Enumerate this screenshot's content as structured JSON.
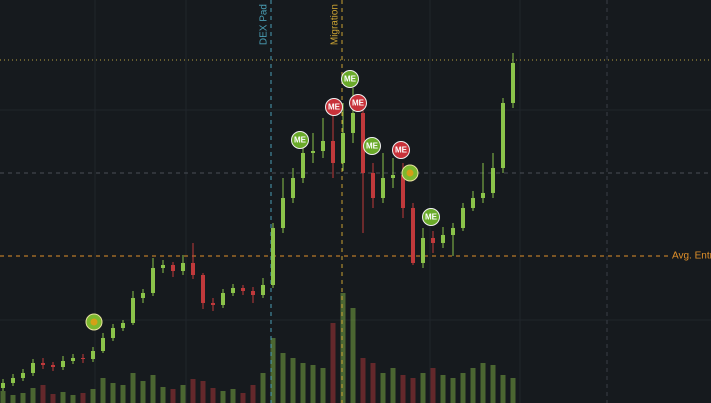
{
  "chart_data": {
    "type": "candlestick",
    "xlim": [
      -0.3,
      70.8
    ],
    "ylim": [
      0,
      403
    ],
    "volume_lim": [
      0,
      403
    ],
    "up_color": "#8bc34a",
    "down_color": "#c0393b",
    "open": [
      15,
      20,
      25,
      30,
      40,
      38,
      36,
      42,
      45,
      44,
      52,
      65,
      75,
      80,
      105,
      110,
      135,
      138,
      132,
      140,
      128,
      100,
      98,
      110,
      115,
      112,
      108,
      118,
      175,
      205,
      225,
      250,
      252,
      262,
      240,
      270,
      290,
      230,
      205,
      225,
      228,
      195,
      140,
      165,
      160,
      168,
      175,
      195,
      205,
      210,
      235,
      300
    ],
    "high": [
      24,
      29,
      34,
      44,
      45,
      41,
      47,
      49,
      49,
      56,
      70,
      79,
      83,
      112,
      114,
      145,
      143,
      141,
      148,
      160,
      130,
      105,
      114,
      119,
      118,
      116,
      125,
      180,
      225,
      235,
      262,
      270,
      285,
      290,
      300,
      315,
      295,
      240,
      250,
      245,
      240,
      200,
      175,
      172,
      176,
      180,
      200,
      212,
      240,
      250,
      305,
      350
    ],
    "low": [
      12,
      17,
      22,
      27,
      34,
      32,
      33,
      39,
      40,
      41,
      50,
      62,
      72,
      78,
      100,
      107,
      130,
      126,
      128,
      124,
      94,
      92,
      95,
      107,
      108,
      100,
      105,
      115,
      170,
      200,
      220,
      240,
      245,
      225,
      232,
      260,
      170,
      195,
      200,
      215,
      185,
      138,
      135,
      150,
      155,
      147,
      172,
      192,
      200,
      205,
      230,
      295
    ],
    "close": [
      20,
      25,
      30,
      40,
      38,
      36,
      42,
      45,
      44,
      52,
      65,
      75,
      80,
      105,
      110,
      135,
      138,
      132,
      140,
      128,
      100,
      98,
      110,
      115,
      112,
      108,
      118,
      175,
      205,
      225,
      250,
      252,
      262,
      240,
      270,
      290,
      230,
      205,
      225,
      228,
      195,
      140,
      165,
      160,
      168,
      175,
      195,
      205,
      210,
      235,
      300,
      340
    ],
    "volume": [
      12,
      8,
      10,
      15,
      18,
      9,
      11,
      8,
      10,
      14,
      25,
      20,
      18,
      30,
      22,
      28,
      16,
      14,
      18,
      24,
      22,
      15,
      12,
      14,
      10,
      18,
      30,
      65,
      50,
      45,
      40,
      38,
      35,
      80,
      110,
      95,
      45,
      40,
      30,
      35,
      28,
      25,
      30,
      35,
      28,
      25,
      30,
      35,
      40,
      38,
      28,
      25
    ],
    "vlines": [
      {
        "x": 26.8,
        "label": "DEX Pad",
        "color": "#4a9fb5"
      },
      {
        "x": 33.9,
        "label": "Migration",
        "color": "#c8a032"
      },
      {
        "x": 60.4,
        "color": "#3a3f47"
      }
    ],
    "hlines": [
      {
        "y": 343,
        "color": "#b8a040"
      },
      {
        "y": 230,
        "color": "#4a4f57"
      },
      {
        "y": 147,
        "label": "Avg. Entr",
        "color": "#e0902a"
      }
    ],
    "markers": [
      {
        "x": 29.7,
        "y": 263,
        "label": "ME",
        "color": "#6aaa2a"
      },
      {
        "x": 33.1,
        "y": 296,
        "label": "ME",
        "color": "#c8323a"
      },
      {
        "x": 34.7,
        "y": 324,
        "label": "ME",
        "color": "#6aaa2a"
      },
      {
        "x": 35.5,
        "y": 300,
        "label": "ME",
        "color": "#c8323a"
      },
      {
        "x": 36.9,
        "y": 257,
        "label": "ME",
        "color": "#6aaa2a"
      },
      {
        "x": 39.8,
        "y": 253,
        "label": "ME",
        "color": "#c8323a"
      },
      {
        "x": 42.8,
        "y": 186,
        "label": "ME",
        "color": "#6aaa2a"
      }
    ],
    "icons": [
      {
        "x": 9.1,
        "y": 81
      },
      {
        "x": 40.7,
        "y": 230
      }
    ]
  }
}
